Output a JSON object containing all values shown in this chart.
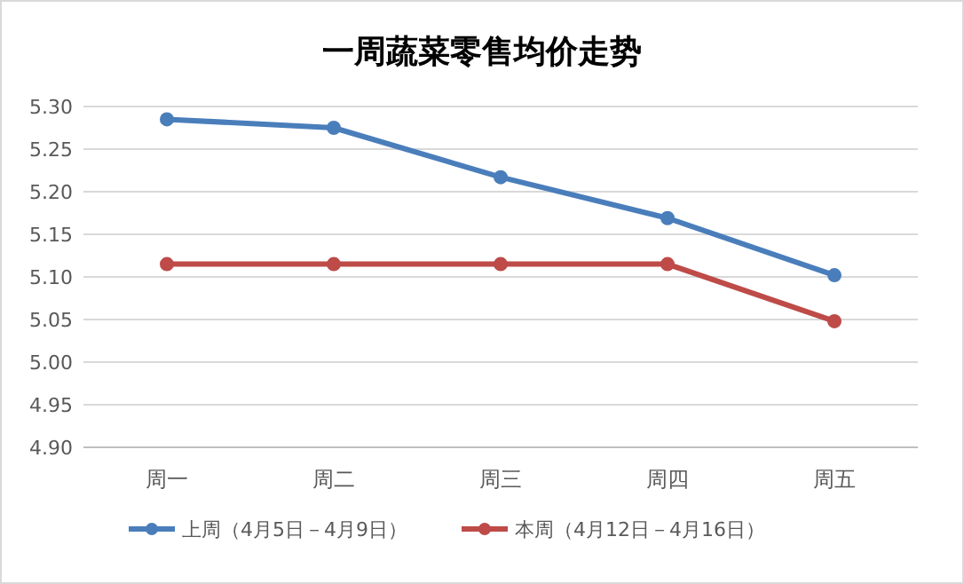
{
  "chart_data": {
    "type": "line",
    "title": "一周蔬菜零售均价走势",
    "categories": [
      "周一",
      "周二",
      "周三",
      "周四",
      "周五"
    ],
    "series": [
      {
        "name": "上周（4月5日－4月9日）",
        "color": "#4a7ebb",
        "values": [
          5.285,
          5.275,
          5.217,
          5.169,
          5.102
        ]
      },
      {
        "name": "本周（4月12日－4月16日）",
        "color": "#be4b48",
        "values": [
          5.115,
          5.115,
          5.115,
          5.115,
          5.048
        ]
      }
    ],
    "ylim": [
      4.9,
      5.3
    ],
    "yticks": [
      {
        "value": 4.9,
        "label": "4.90"
      },
      {
        "value": 4.95,
        "label": "4.95"
      },
      {
        "value": 5.0,
        "label": "5.00"
      },
      {
        "value": 5.05,
        "label": "5.05"
      },
      {
        "value": 5.1,
        "label": "5.10"
      },
      {
        "value": 5.15,
        "label": "5.15"
      },
      {
        "value": 5.2,
        "label": "5.20"
      },
      {
        "value": 5.25,
        "label": "5.25"
      },
      {
        "value": 5.3,
        "label": "5.30"
      }
    ],
    "grid": "y",
    "legend": "bottom",
    "marker": "circle",
    "line_style": "solid"
  }
}
